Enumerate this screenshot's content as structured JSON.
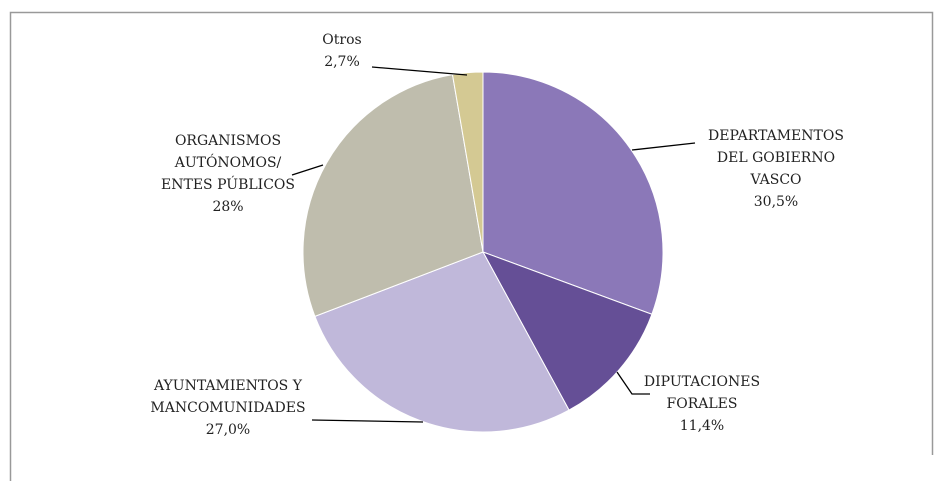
{
  "chart_data": {
    "type": "pie",
    "categories": [
      "DEPARTAMENTOS\nDEL GOBIERNO\nVASCO",
      "DIPUTACIONES\nFORALES",
      "AYUNTAMIENTOS Y\nMANCOMUNIDADES",
      "ORGANISMOS\nAUTÓNOMOS/\nENTES PÚBLICOS",
      "Otros"
    ],
    "values": [
      30.5,
      11.4,
      27.0,
      28,
      2.7
    ],
    "value_labels": [
      "30,5%",
      "11,4%",
      "27,0%",
      "28%",
      "2,7%"
    ],
    "colors": [
      "#8b78b8",
      "#654f96",
      "#c0b8da",
      "#bfbdad",
      "#d4c993"
    ]
  }
}
